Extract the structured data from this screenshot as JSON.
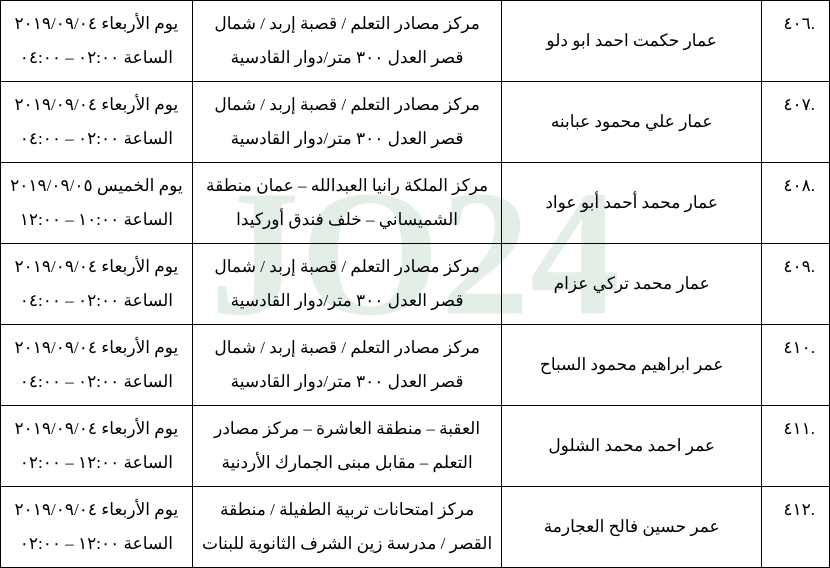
{
  "watermark_text": "JO24",
  "watermark_color": "rgba(100,160,120,0.18)",
  "rows": [
    {
      "num": ".٤٠٦",
      "name": "عمار حكمت احمد ابو دلو",
      "loc1": "مركز مصادر التعلم / قصبة  إربد /  شمال",
      "loc2": "قصر العدل ٣٠٠ متر/دوار القادسية",
      "dt1": "يوم الأربعاء ٢٠١٩/٠٩/٠٤",
      "dt2": "الساعة ٠٢:٠٠ – ٠٤:٠٠"
    },
    {
      "num": ".٤٠٧",
      "name": "عمار  علي محمود عبابنه",
      "loc1": "مركز مصادر التعلم / قصبة  إربد /  شمال",
      "loc2": "قصر العدل ٣٠٠ متر/دوار القادسية",
      "dt1": "يوم الأربعاء ٢٠١٩/٠٩/٠٤",
      "dt2": "الساعة ٠٢:٠٠ – ٠٤:٠٠"
    },
    {
      "num": ".٤٠٨",
      "name": "عمار محمد أحمد أبو عواد",
      "loc1": "مركز الملكة رانيا العبدالله – عمان منطقة",
      "loc2": "الشميساني – خلف فندق أوركيدا",
      "dt1": "يوم الخميس ٢٠١٩/٠٩/٠٥",
      "dt2": "الساعة ١٠:٠٠ – ١٢:٠٠"
    },
    {
      "num": ".٤٠٩",
      "name": "عمار محمد تركي عزام",
      "loc1": "مركز مصادر التعلم / قصبة  إربد /  شمال",
      "loc2": "قصر العدل ٣٠٠ متر/دوار القادسية",
      "dt1": "يوم الأربعاء ٢٠١٩/٠٩/٠٤",
      "dt2": "الساعة ٠٢:٠٠ – ٠٤:٠٠"
    },
    {
      "num": ".٤١٠",
      "name": "عمر ابراهيم محمود السباح",
      "loc1": "مركز مصادر التعلم / قصبة  إربد /  شمال",
      "loc2": "قصر العدل ٣٠٠ متر/دوار القادسية",
      "dt1": "يوم الأربعاء ٢٠١٩/٠٩/٠٤",
      "dt2": "الساعة ٠٢:٠٠ – ٠٤:٠٠"
    },
    {
      "num": ".٤١١",
      "name": "عمر احمد محمد الشلول",
      "loc1": "العقبة – منطقة العاشرة – مركز مصادر",
      "loc2": "التعلم – مقابل مبنى الجمارك الأردنية",
      "dt1": "يوم الأربعاء ٢٠١٩/٠٩/٠٤",
      "dt2": "الساعة ١٢:٠٠ – ٠٢:٠٠"
    },
    {
      "num": ".٤١٢",
      "name": "عمر حسين فالح العجارمة",
      "loc1": "مركز امتحانات تربية الطفيلة / منطقة",
      "loc2": "القصر / مدرسة زين  الشرف الثانوية للبنات",
      "dt1": "يوم الأربعاء ٢٠١٩/٠٩/٠٤",
      "dt2": "الساعة ١٢:٠٠ – ٠٢:٠٠"
    }
  ]
}
